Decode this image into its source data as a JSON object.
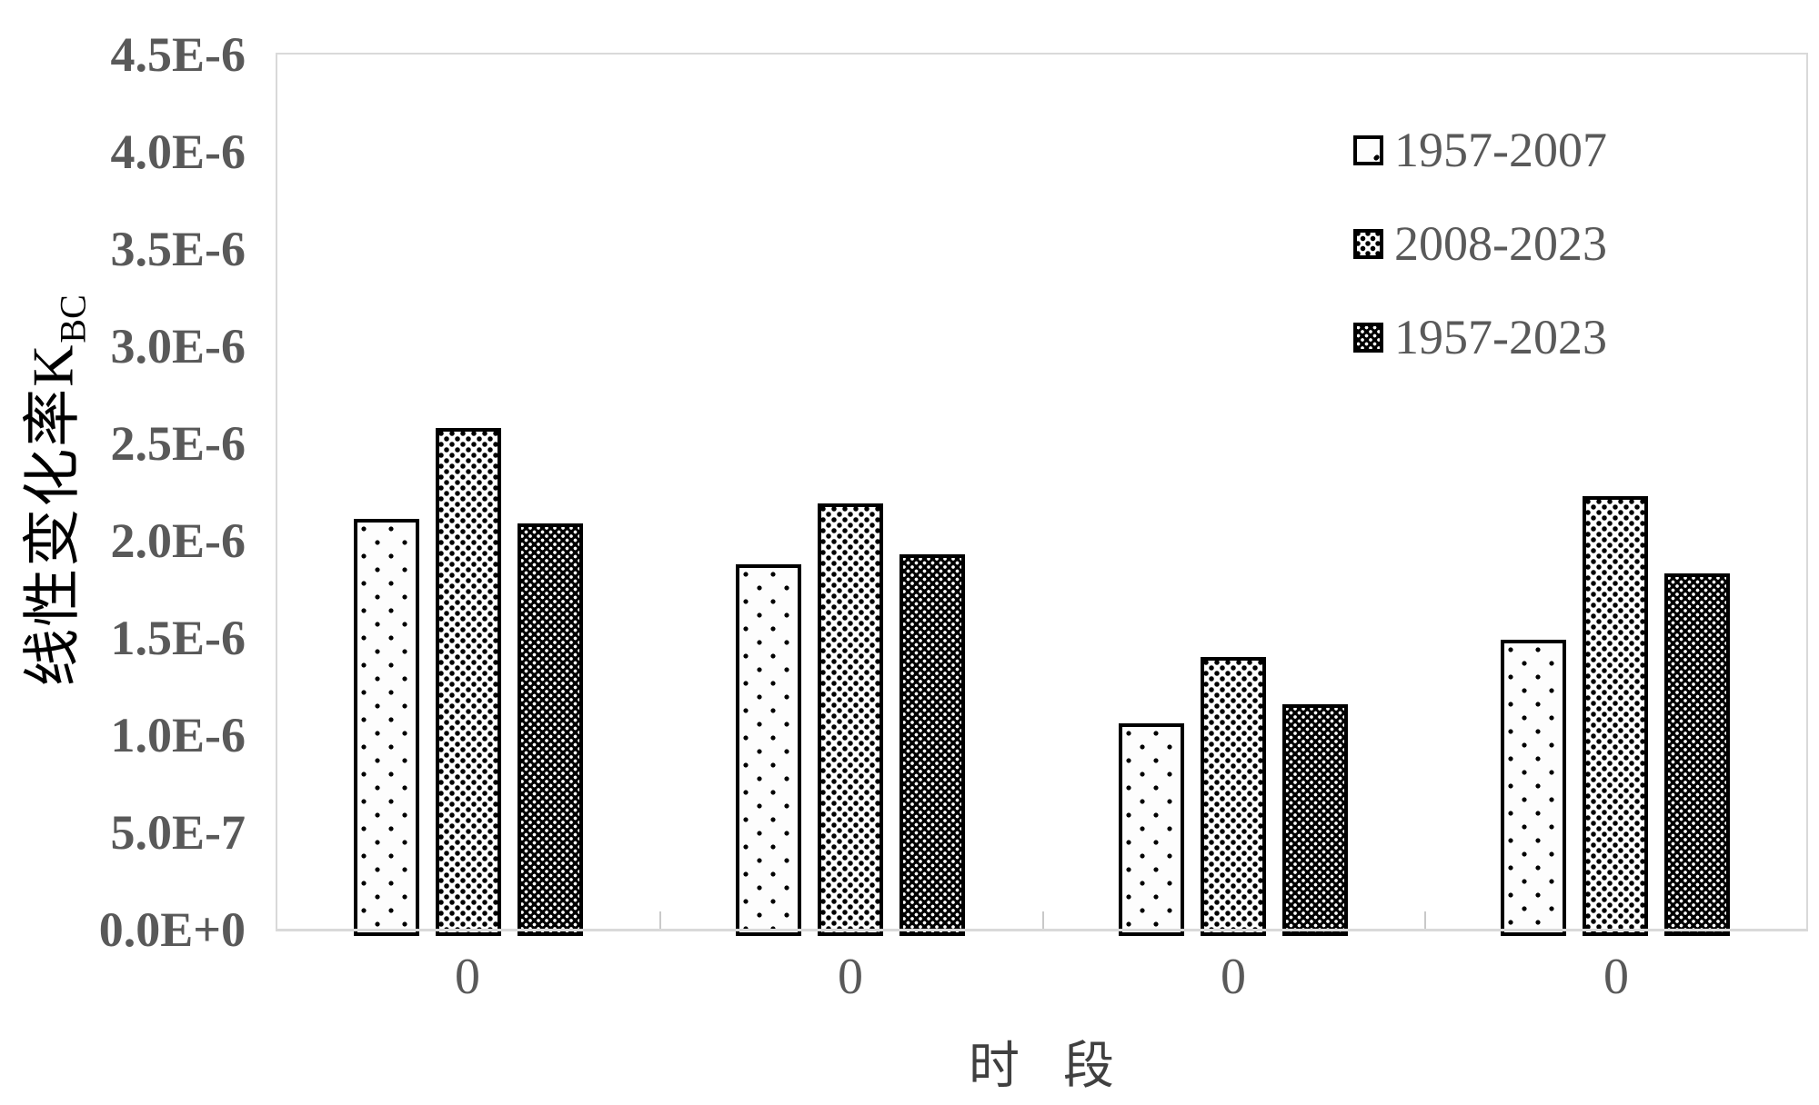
{
  "chart_data": {
    "type": "bar",
    "title": "",
    "categories": [
      "0",
      "0",
      "0",
      "0"
    ],
    "series": [
      {
        "name": "1957-2007",
        "pattern": "sparse-black-dots-on-white",
        "values": [
          2.11e-06,
          1.88e-06,
          1.06e-06,
          1.49e-06
        ]
      },
      {
        "name": "2008-2023",
        "pattern": "medium-black-dots-on-white",
        "values": [
          2.58e-06,
          2.19e-06,
          1.4e-06,
          2.23e-06
        ]
      },
      {
        "name": "1957-2023",
        "pattern": "dense-white-dots-on-black",
        "values": [
          2.09e-06,
          1.93e-06,
          1.16e-06,
          1.83e-06
        ]
      }
    ],
    "xlabel": "时 段",
    "ylabel": "线性变化率K",
    "ylabel_subscript": "BC",
    "ylim": [
      0,
      4.5e-06
    ],
    "ytick_step": 5e-07,
    "ytick_labels": [
      "0.0E+0",
      "5.0E-7",
      "1.0E-6",
      "1.5E-6",
      "2.0E-6",
      "2.5E-6",
      "3.0E-6",
      "3.5E-6",
      "4.0E-6",
      "4.5E-6"
    ],
    "grid": false,
    "legend_position": "upper-right-inside-plot"
  },
  "colors": {
    "tick_text": "#595959",
    "category_text": "#595959",
    "legend_text": "#595959",
    "y_axis_title": "#000000",
    "x_axis_title": "#404040",
    "frame": "#d9d9d9",
    "bar_border": "#000000",
    "background": "#ffffff"
  }
}
